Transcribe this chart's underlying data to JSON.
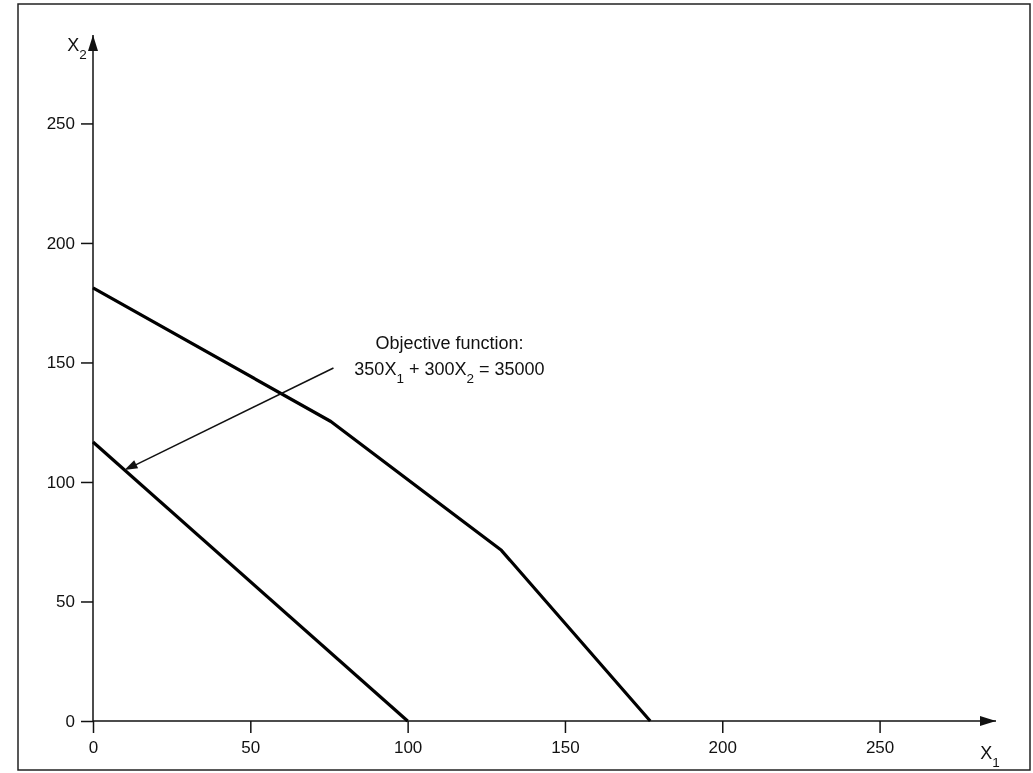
{
  "chart_data": {
    "type": "line",
    "xlabel": "X$_{1}$",
    "ylabel": "X$_{2}$",
    "xlim": [
      0,
      287
    ],
    "ylim": [
      0,
      287
    ],
    "xticks": [
      0,
      50,
      100,
      150,
      200,
      250
    ],
    "yticks": [
      0,
      50,
      100,
      150,
      200,
      250
    ],
    "grid": false,
    "marker": "none",
    "line_style": "solid",
    "series": [
      {
        "color": "#000000",
        "x": [
          0,
          75.6,
          129.8,
          177.1
        ],
        "values": [
          181.2,
          125.3,
          71.4,
          0
        ]
      },
      {
        "color": "#000000",
        "x": [
          0,
          100
        ],
        "values": [
          116.7,
          0
        ]
      }
    ],
    "annotations": [
      "Objective function:\n350X$_{1}$ + 300X$_{2}$ = 35000"
    ]
  }
}
